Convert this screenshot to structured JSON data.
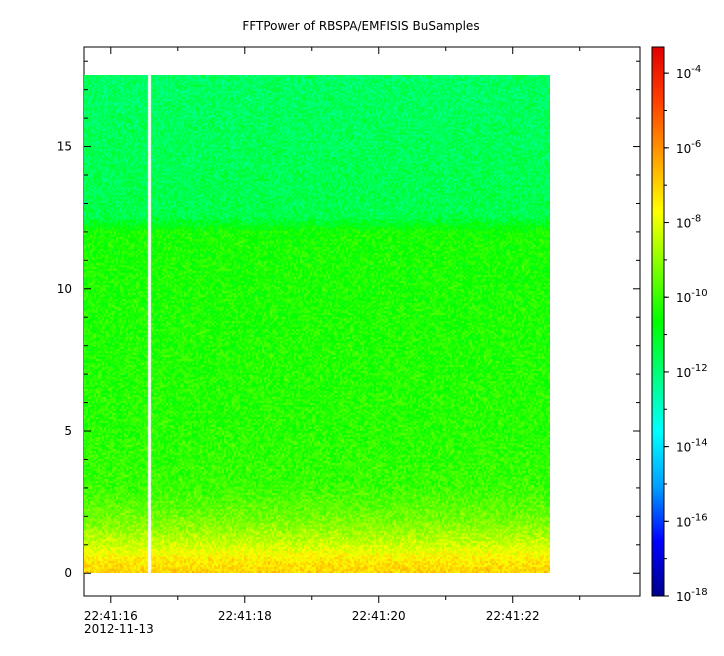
{
  "chart_data": {
    "type": "heatmap",
    "title": "FFTPower of RBSPA/EMFISIS  BuSamples",
    "xlabel": "",
    "ylabel": "",
    "x_axis": {
      "ticks": [
        {
          "label": "22:41:16",
          "t": 0
        },
        {
          "label": "22:41:18",
          "t": 2
        },
        {
          "label": "22:41:20",
          "t": 4
        },
        {
          "label": "22:41:22",
          "t": 6
        }
      ],
      "minor_ticks": [
        1,
        3,
        5,
        7
      ],
      "date_label": "2012-11-13",
      "range_seconds": [
        -0.4,
        7.9
      ]
    },
    "y_axis": {
      "ticks": [
        {
          "label": "0",
          "v": 0
        },
        {
          "label": "5",
          "v": 5
        },
        {
          "label": "10",
          "v": 10
        },
        {
          "label": "15",
          "v": 15
        }
      ],
      "range": [
        -0.8,
        18.5
      ]
    },
    "colorbar": {
      "scale": "log",
      "range_exponent": [
        -18,
        -3.3
      ],
      "ticks": [
        {
          "label": "10",
          "exp": "-4",
          "exponent": -4
        },
        {
          "label": "10",
          "exp": "-6",
          "exponent": -6
        },
        {
          "label": "10",
          "exp": "-8",
          "exponent": -8
        },
        {
          "label": "10",
          "exp": "-10",
          "exponent": -10
        },
        {
          "label": "10",
          "exp": "-12",
          "exponent": -12
        },
        {
          "label": "10",
          "exp": "-14",
          "exponent": -14
        },
        {
          "label": "10",
          "exp": "-16",
          "exponent": -16
        },
        {
          "label": "10",
          "exp": "-18",
          "exponent": -18
        }
      ],
      "colors": [
        "#00008c",
        "#0000ff",
        "#00a0ff",
        "#00ffff",
        "#00ff80",
        "#00ff00",
        "#80ff00",
        "#ffff00",
        "#ffa000",
        "#ff4000",
        "#e00000"
      ]
    },
    "data_extent": {
      "t_start": -0.4,
      "t_end": 6.55,
      "freq_max": 17.5
    },
    "gaps": [
      {
        "t_start": 0.57,
        "t_end": 0.6
      }
    ],
    "power_profile_log10": [
      {
        "freq": 0.0,
        "value": -7.0
      },
      {
        "freq": 0.5,
        "value": -7.5
      },
      {
        "freq": 1.0,
        "value": -8.3
      },
      {
        "freq": 1.5,
        "value": -8.9
      },
      {
        "freq": 2.0,
        "value": -9.4
      },
      {
        "freq": 3.0,
        "value": -10.0
      },
      {
        "freq": 5.0,
        "value": -10.2
      },
      {
        "freq": 12.0,
        "value": -10.4
      },
      {
        "freq": 12.5,
        "value": -11.5
      },
      {
        "freq": 17.5,
        "value": -11.8
      }
    ]
  }
}
